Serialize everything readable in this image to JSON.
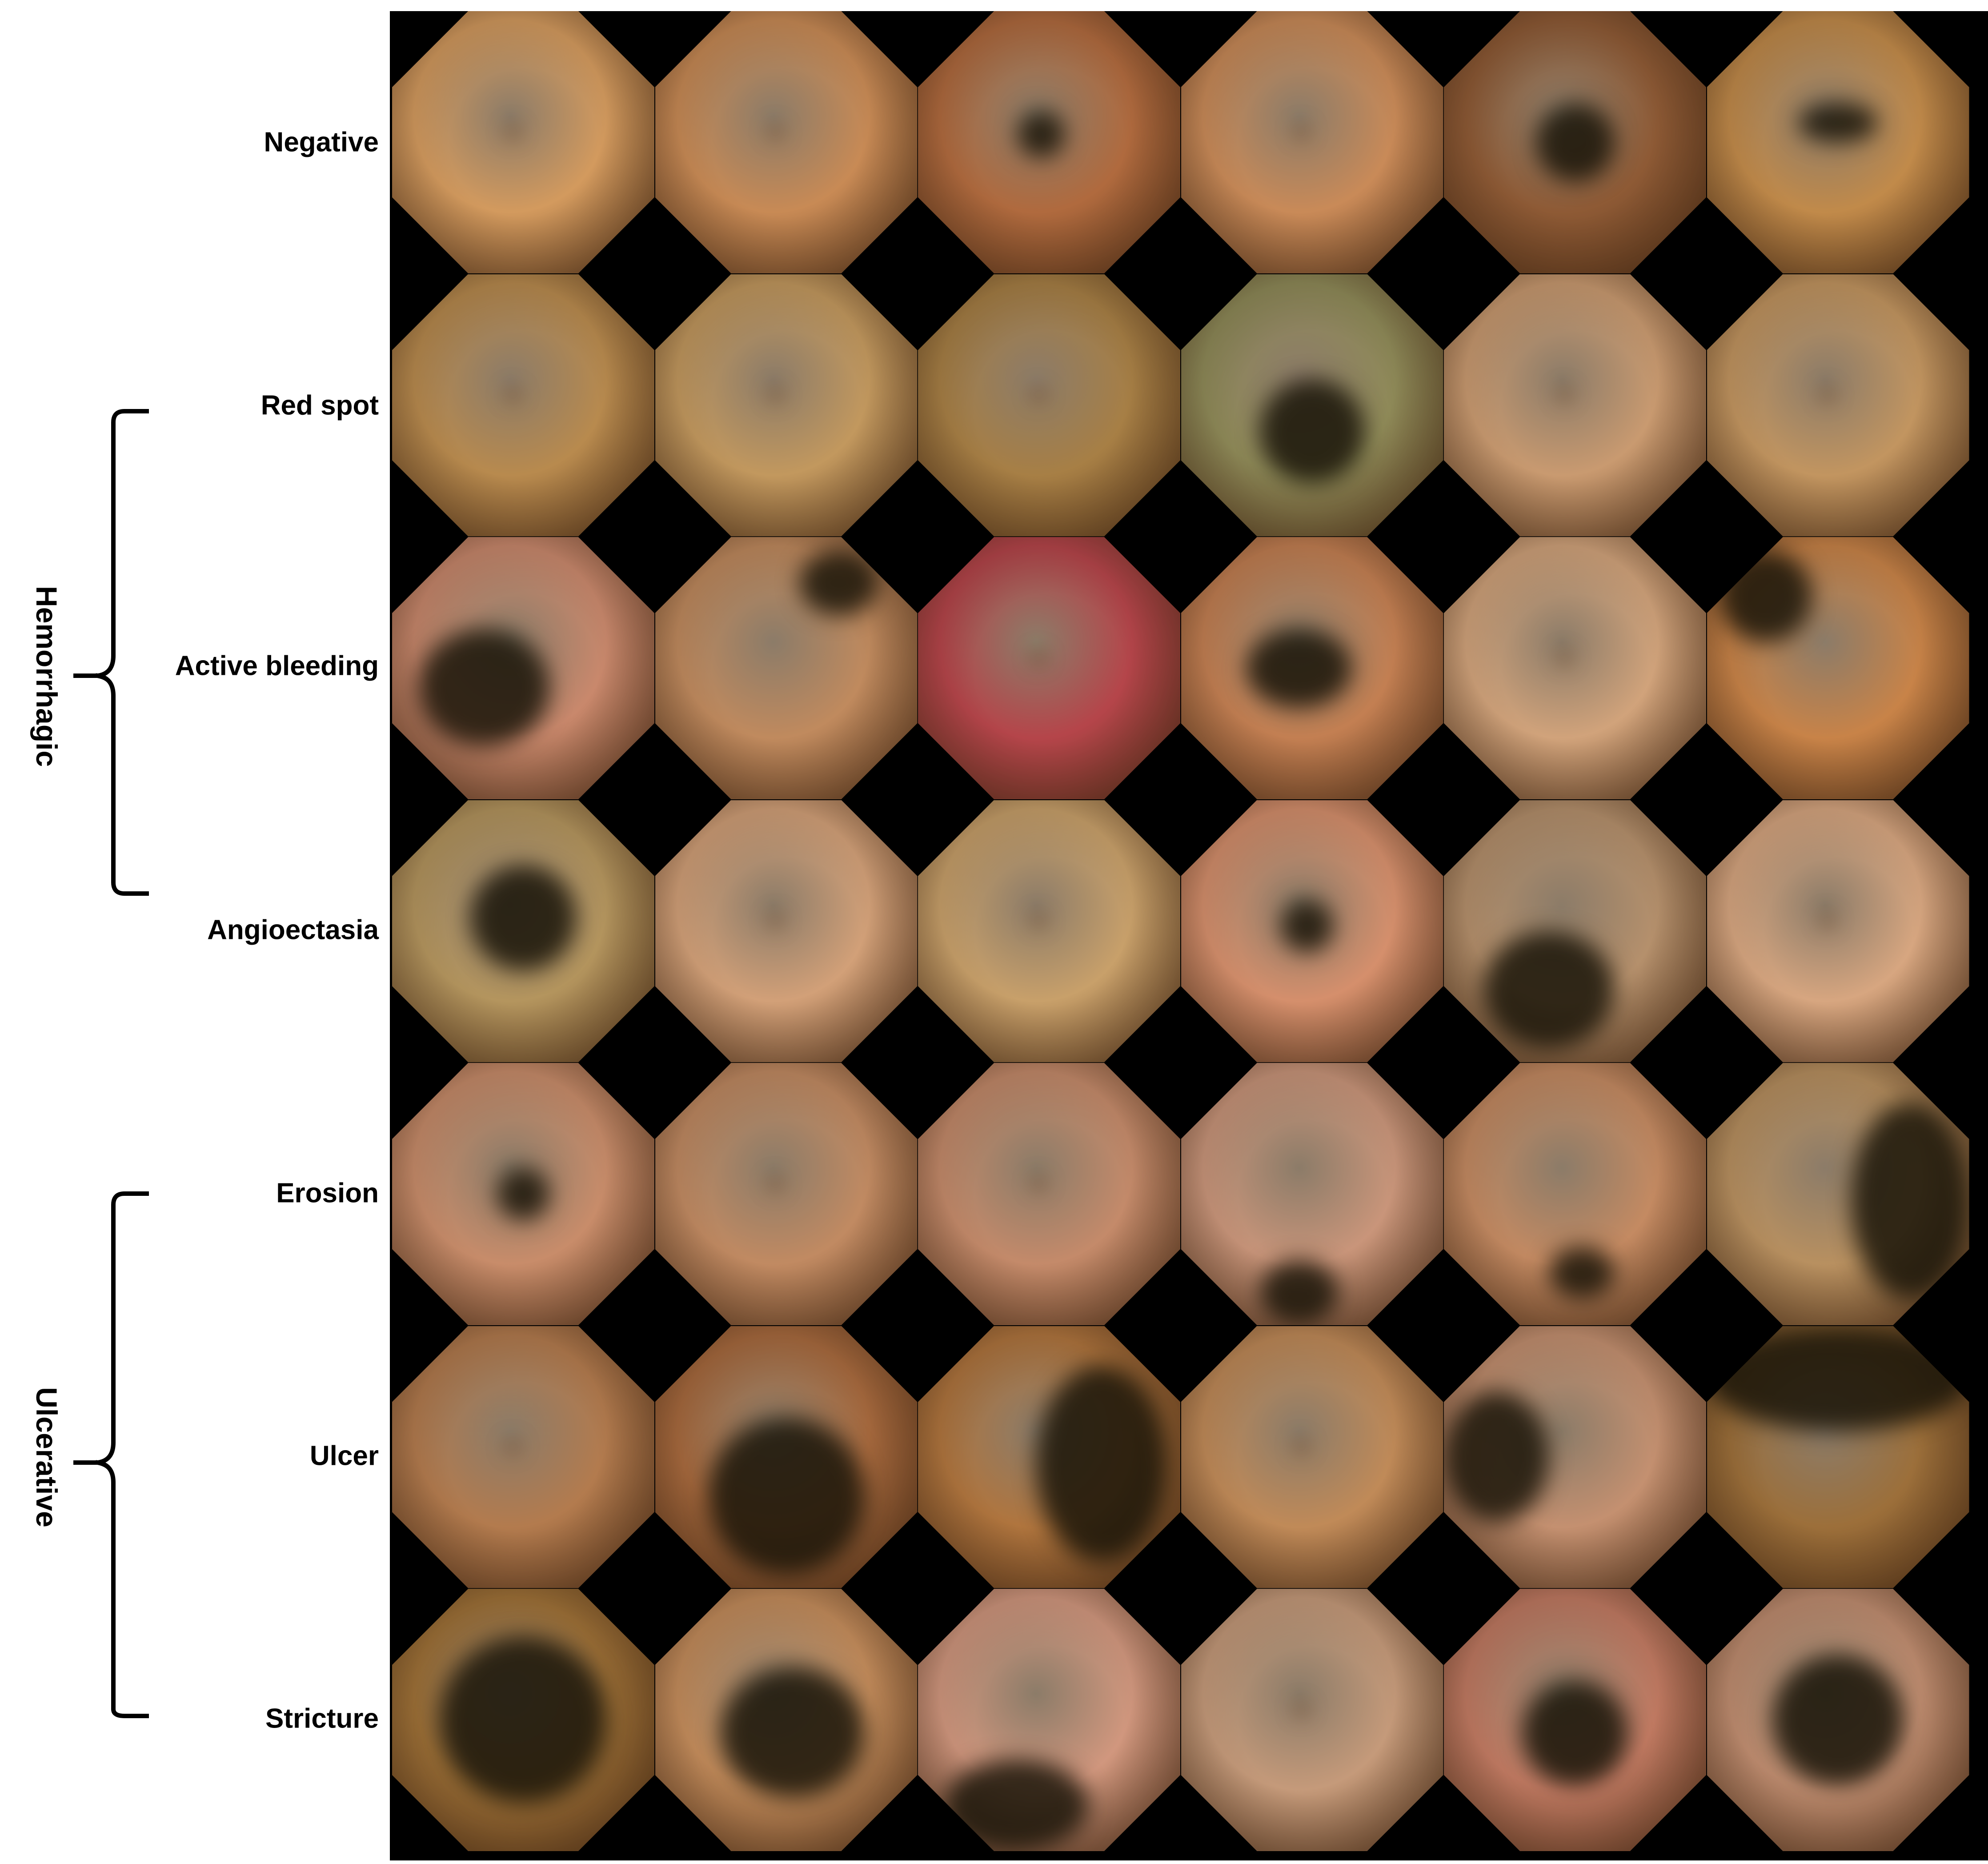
{
  "row_labels": [
    "Negative",
    "Red spot",
    "Active bleeding",
    "Angioectasia",
    "Erosion",
    "Ulcer",
    "Stricture"
  ],
  "groups": [
    {
      "label": "Hemorrhagic",
      "rows": [
        "Red spot",
        "Active bleeding",
        "Angioectasia"
      ]
    },
    {
      "label": "Ulcerative",
      "rows": [
        "Erosion",
        "Ulcer",
        "Stricture"
      ]
    }
  ],
  "grid": {
    "rows": 7,
    "columns": 6
  },
  "colors": {
    "background": "#000000",
    "mucosa": "#c8895a",
    "text": "#000000"
  }
}
